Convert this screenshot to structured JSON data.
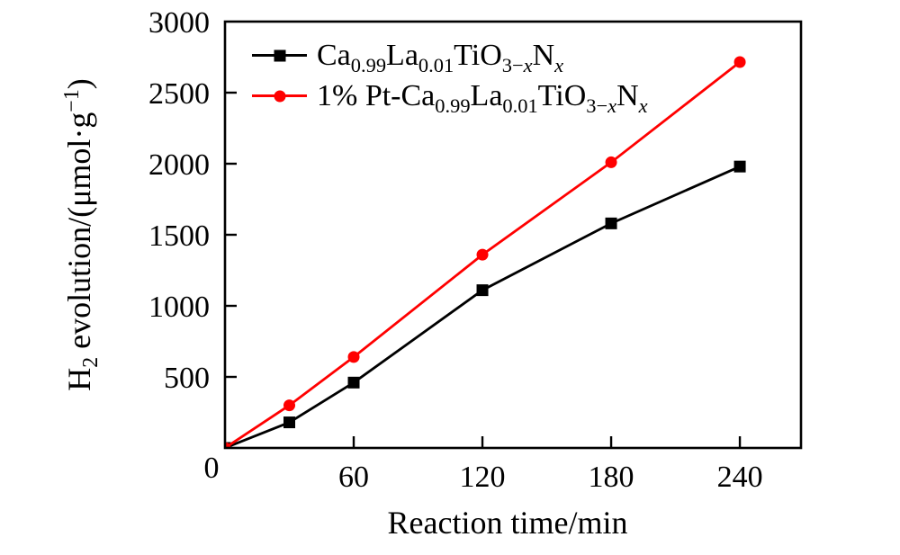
{
  "figure": {
    "background": "#ffffff",
    "frame_color": "#000000"
  },
  "chart_data": {
    "type": "line",
    "title": "",
    "xlabel": "Reaction time/min",
    "ylabel": "H2 evolution/(μmol·g−1)",
    "ylabel_parts": [
      {
        "t": "H"
      },
      {
        "t": "2",
        "sub": true
      },
      {
        "t": " evolution/(μmol·g"
      },
      {
        "t": "−1",
        "sup": true
      },
      {
        "t": ")"
      }
    ],
    "xlim": [
      0,
      268.5
    ],
    "ylim": [
      0,
      3000
    ],
    "x_ticks": [
      0,
      60,
      120,
      180,
      240
    ],
    "y_ticks": [
      0,
      500,
      1000,
      1500,
      2000,
      2500,
      3000
    ],
    "origin_label": "0",
    "grid": false,
    "legend_position": "top-left",
    "x": [
      0,
      30,
      60,
      120,
      180,
      240
    ],
    "series": [
      {
        "name": "Ca0.99La0.01TiO3-xNx",
        "name_parts": [
          {
            "t": "Ca"
          },
          {
            "t": "0.99",
            "sub": true
          },
          {
            "t": "La"
          },
          {
            "t": "0.01",
            "sub": true
          },
          {
            "t": "TiO"
          },
          {
            "t": "3−",
            "sub": true
          },
          {
            "t": "x",
            "sub": true,
            "i": true
          },
          {
            "t": "N"
          },
          {
            "t": "x",
            "sub": true,
            "i": true
          }
        ],
        "color": "#000000",
        "marker": "square",
        "values": [
          0,
          180,
          460,
          1110,
          1580,
          1980
        ]
      },
      {
        "name": "1% Pt-Ca0.99La0.01TiO3-xNx",
        "name_parts": [
          {
            "t": "1% Pt-Ca"
          },
          {
            "t": "0.99",
            "sub": true
          },
          {
            "t": "La"
          },
          {
            "t": "0.01",
            "sub": true
          },
          {
            "t": "TiO"
          },
          {
            "t": "3−",
            "sub": true
          },
          {
            "t": "x",
            "sub": true,
            "i": true
          },
          {
            "t": "N"
          },
          {
            "t": "x",
            "sub": true,
            "i": true
          }
        ],
        "color": "#ff0000",
        "marker": "circle",
        "values": [
          0,
          300,
          640,
          1360,
          2010,
          2715
        ]
      }
    ]
  }
}
